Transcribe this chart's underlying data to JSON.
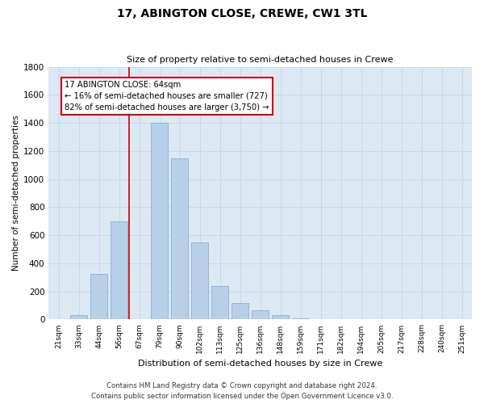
{
  "title1": "17, ABINGTON CLOSE, CREWE, CW1 3TL",
  "title2": "Size of property relative to semi-detached houses in Crewe",
  "xlabel": "Distribution of semi-detached houses by size in Crewe",
  "ylabel": "Number of semi-detached properties",
  "categories": [
    "21sqm",
    "33sqm",
    "44sqm",
    "56sqm",
    "67sqm",
    "79sqm",
    "90sqm",
    "102sqm",
    "113sqm",
    "125sqm",
    "136sqm",
    "148sqm",
    "159sqm",
    "171sqm",
    "182sqm",
    "194sqm",
    "205sqm",
    "217sqm",
    "228sqm",
    "240sqm",
    "251sqm"
  ],
  "values": [
    0,
    30,
    325,
    700,
    0,
    1400,
    1150,
    550,
    240,
    120,
    65,
    30,
    10,
    5,
    2,
    0,
    0,
    0,
    0,
    0,
    0
  ],
  "bar_color": "#b8cfe8",
  "bar_edge_color": "#8aafd4",
  "bar_width": 0.85,
  "ylim": [
    0,
    1800
  ],
  "yticks": [
    0,
    200,
    400,
    600,
    800,
    1000,
    1200,
    1400,
    1600,
    1800
  ],
  "property_label": "17 ABINGTON CLOSE: 64sqm",
  "annotation_line1": "← 16% of semi-detached houses are smaller (727)",
  "annotation_line2": "82% of semi-detached houses are larger (3,750) →",
  "red_line_color": "#cc0000",
  "annotation_box_color": "#cc0000",
  "grid_color": "#c8d8e8",
  "background_color": "#dce8f4",
  "footer1": "Contains HM Land Registry data © Crown copyright and database right 2024.",
  "footer2": "Contains public sector information licensed under the Open Government Licence v3.0.",
  "fig_width": 6.0,
  "fig_height": 5.0,
  "dpi": 100
}
